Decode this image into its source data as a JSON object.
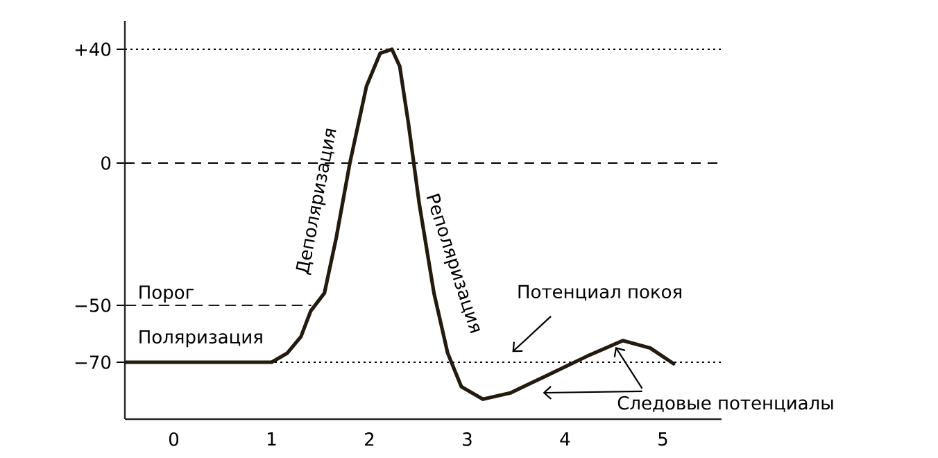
{
  "chart_data": {
    "type": "line",
    "xlim": [
      -0.5,
      5.6
    ],
    "ylim": [
      -90,
      50
    ],
    "xticks": [
      0,
      1,
      2,
      3,
      4,
      5
    ],
    "yticks": [
      {
        "value": 40,
        "label": "+40"
      },
      0,
      {
        "value": -50,
        "label": "−50"
      },
      {
        "value": -70,
        "label": "−70"
      }
    ],
    "series": [
      {
        "color": "#231a10",
        "line_style": "solid",
        "x": [
          -0.49,
          1.0,
          1.16,
          1.3,
          1.4,
          1.54,
          1.66,
          1.8,
          1.97,
          2.11,
          2.23,
          2.31,
          2.4,
          2.51,
          2.66,
          2.8,
          2.94,
          3.16,
          3.44,
          3.8,
          4.23,
          4.59,
          4.87,
          5.11
        ],
        "values": [
          -70,
          -70,
          -66.8,
          -61,
          -52,
          -45.7,
          -26.4,
          0,
          27,
          38.6,
          40,
          34,
          13.6,
          -14.4,
          -45.7,
          -66.8,
          -78.6,
          -83,
          -80.8,
          -74.9,
          -67.8,
          -62.4,
          -65,
          -70.5
        ]
      },
      {
        "color": "#231a10",
        "line_style": "dashed",
        "x": [
          -0.49,
          1.4
        ],
        "values": [
          -50,
          -50
        ]
      }
    ],
    "ref_lines": [
      {
        "axis": "y",
        "value": 40,
        "line_style": "dotted"
      },
      {
        "axis": "y",
        "value": 0,
        "line_style": "dashed"
      },
      {
        "axis": "y",
        "value": -70,
        "line_style": "dotted"
      }
    ],
    "annotations": [
      "Деполяризация",
      "Реполяризация",
      "Порог",
      "Поляризация",
      "Потенциал покоя",
      {
        "text": "Следовые потенциалы",
        "x": 4.5,
        "y": -63.8
      }
    ]
  }
}
